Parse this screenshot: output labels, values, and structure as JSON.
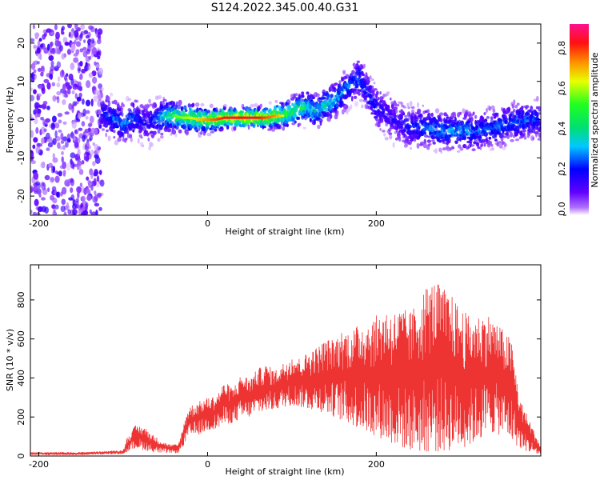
{
  "title": "S124.2022.345.00.40.G31",
  "chart_data": [
    {
      "type": "heatmap",
      "xlabel": "Height of straight line (km)",
      "ylabel": "Frequency (Hz)",
      "xlim": [
        -210,
        395
      ],
      "ylim": [
        -25,
        25
      ],
      "x_ticks": [
        -200,
        0,
        200
      ],
      "y_ticks": [
        -20,
        -10,
        0,
        10,
        20
      ],
      "x_tick_labels": [
        "-200",
        "0",
        "200"
      ],
      "y_tick_labels": [
        "-20",
        "-10",
        "0",
        "10",
        "20"
      ],
      "colorbar": {
        "label": "Normalized spectral amplitude",
        "range": [
          0,
          0.95
        ],
        "ticks": [
          0.0,
          0.2,
          0.4,
          0.6,
          0.8
        ],
        "tick_labels": [
          "0.0",
          "0.2",
          "0.4",
          "0.6",
          "0.8"
        ],
        "colormap": "rainbow"
      },
      "ridge": {
        "x": [
          -125,
          -110,
          -100,
          -90,
          -80,
          -70,
          -60,
          -50,
          -40,
          -30,
          -20,
          -10,
          0,
          10,
          20,
          30,
          40,
          50,
          60,
          70,
          80,
          90,
          100,
          110,
          120,
          130,
          140,
          150,
          160,
          170,
          180,
          190,
          200,
          210,
          220,
          230,
          240,
          260,
          280,
          300,
          320,
          340,
          360,
          380,
          395
        ],
        "y": [
          2,
          0,
          -1,
          0,
          0,
          -1,
          0,
          1,
          1,
          0.5,
          0.5,
          0,
          0,
          0,
          0.5,
          0.5,
          0.5,
          0.5,
          0.5,
          0.5,
          1,
          1,
          2,
          3,
          3,
          2,
          4,
          5,
          7,
          9,
          11,
          7,
          3,
          2,
          0,
          -1,
          -2,
          -2,
          -3,
          -3,
          -3,
          -2,
          -1,
          0,
          0
        ],
        "amplitude": [
          0.25,
          0.3,
          0.35,
          0.3,
          0.25,
          0.2,
          0.3,
          0.45,
          0.5,
          0.55,
          0.6,
          0.65,
          0.7,
          0.75,
          0.8,
          0.85,
          0.8,
          0.85,
          0.8,
          0.75,
          0.7,
          0.6,
          0.55,
          0.5,
          0.45,
          0.4,
          0.45,
          0.4,
          0.35,
          0.3,
          0.3,
          0.25,
          0.25,
          0.2,
          0.2,
          0.2,
          0.25,
          0.3,
          0.35,
          0.35,
          0.3,
          0.3,
          0.3,
          0.3,
          0.25
        ]
      },
      "noise_region": {
        "x": [
          -210,
          -125
        ],
        "amplitude": "low"
      }
    },
    {
      "type": "line",
      "xlabel": "Height of straight line (km)",
      "ylabel": "SNR (10 * v/v)",
      "xlim": [
        -210,
        395
      ],
      "ylim": [
        0,
        980
      ],
      "x_ticks": [
        -200,
        0,
        200
      ],
      "y_ticks": [
        0,
        200,
        400,
        600,
        800
      ],
      "x_tick_labels": [
        "-200",
        "0",
        "200"
      ],
      "y_tick_labels": [
        "0",
        "200",
        "400",
        "600",
        "800"
      ],
      "color": "#ee3333",
      "envelope_upper": {
        "x": [
          -210,
          -150,
          -100,
          -95,
          -85,
          -75,
          -65,
          -55,
          -45,
          -35,
          -30,
          -25,
          -20,
          -10,
          0,
          10,
          20,
          30,
          40,
          50,
          60,
          70,
          80,
          90,
          100,
          110,
          120,
          130,
          140,
          150,
          160,
          170,
          180,
          190,
          200,
          210,
          220,
          230,
          240,
          250,
          260,
          270,
          280,
          290,
          300,
          310,
          320,
          330,
          340,
          350,
          360,
          370,
          380,
          395
        ],
        "y": [
          20,
          20,
          30,
          100,
          160,
          150,
          110,
          80,
          60,
          60,
          130,
          230,
          260,
          280,
          300,
          310,
          380,
          350,
          420,
          400,
          450,
          470,
          440,
          480,
          520,
          500,
          540,
          560,
          600,
          600,
          650,
          640,
          680,
          700,
          720,
          760,
          740,
          760,
          740,
          800,
          880,
          900,
          860,
          820,
          760,
          720,
          720,
          740,
          700,
          650,
          600,
          300,
          200,
          50
        ]
      },
      "envelope_lower": {
        "x": [
          -210,
          -150,
          -100,
          -95,
          -85,
          -75,
          -65,
          -55,
          -45,
          -35,
          -30,
          -25,
          -20,
          -10,
          0,
          10,
          20,
          30,
          40,
          50,
          60,
          70,
          80,
          90,
          100,
          110,
          120,
          130,
          140,
          150,
          160,
          170,
          180,
          190,
          200,
          210,
          220,
          230,
          240,
          250,
          260,
          270,
          280,
          290,
          300,
          310,
          320,
          330,
          340,
          350,
          360,
          370,
          380,
          395
        ],
        "y": [
          5,
          5,
          10,
          20,
          40,
          30,
          20,
          15,
          15,
          15,
          40,
          80,
          100,
          110,
          130,
          140,
          160,
          170,
          190,
          200,
          220,
          230,
          240,
          250,
          260,
          250,
          240,
          230,
          220,
          200,
          180,
          160,
          140,
          120,
          100,
          80,
          60,
          40,
          30,
          20,
          20,
          20,
          20,
          30,
          40,
          50,
          80,
          100,
          120,
          100,
          80,
          40,
          20,
          5
        ]
      }
    }
  ]
}
